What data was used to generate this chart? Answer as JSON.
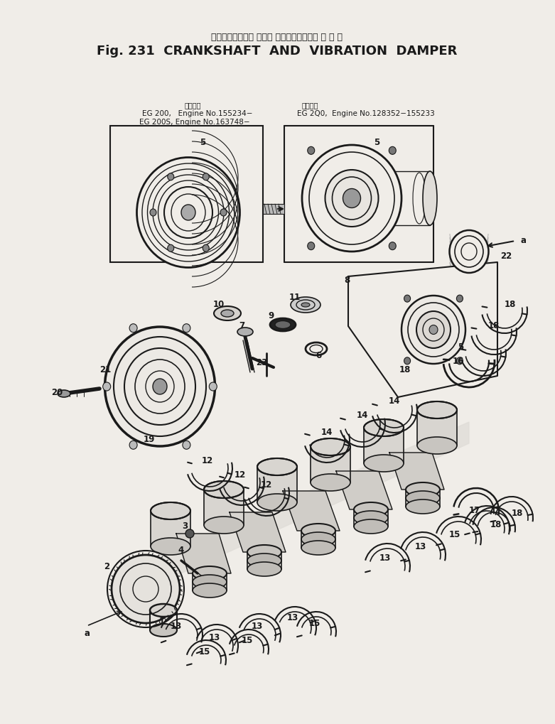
{
  "title_jp": "クランクシャフト および バイブレーション ダ ン パ",
  "title_en": "Fig. 231  CRANKSHAFT  AND  VIBRATION  DAMPER",
  "bg_color": "#f0ede8",
  "line_color": "#1a1a1a",
  "text_color": "#1a1a1a",
  "header1_label": "通用号機",
  "header1_l1": "EG 200,   Engine No.155234−",
  "header1_l2": "EG 200S, Engine No.163748−",
  "header2_label": "適用号機",
  "header2_l1": "EG 2Q0,  Engine No.128352−155233"
}
